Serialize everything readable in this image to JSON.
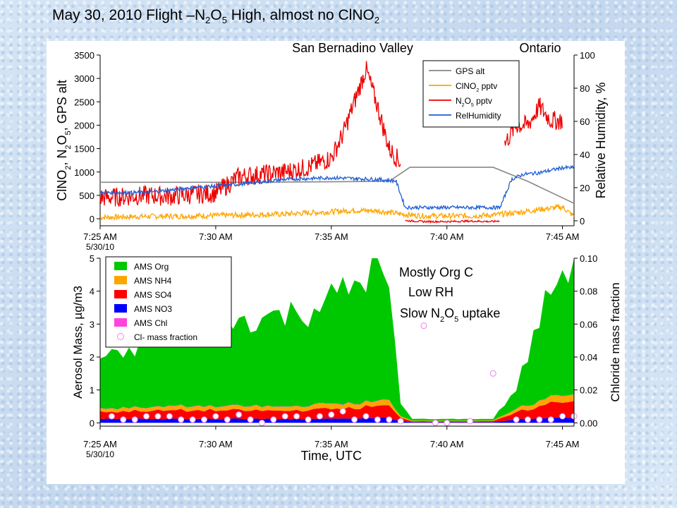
{
  "slide": {
    "title_prefix": "May 30, 2010 Flight –N",
    "title_sub1": "2",
    "title_mid1": "O",
    "title_sub2": "5",
    "title_mid2": " High, almost no ClNO",
    "title_sub3": "2"
  },
  "colors": {
    "gps_alt": "#888888",
    "clno2": "#ffa500",
    "n2o5": "#ee0000",
    "rh": "#1f5fd6",
    "ams_org": "#00c800",
    "ams_nh4": "#ffa500",
    "ams_so4": "#ff0000",
    "ams_no3": "#0000ff",
    "ams_chl": "#ff44dd",
    "cl_marker_fill": "#ffffff",
    "cl_marker_stroke": "#ee82ee"
  },
  "chart_data": [
    {
      "type": "line",
      "x_unit": "minutes after 7:25 AM",
      "xticks": [
        "7:25 AM",
        "7:30 AM",
        "7:35 AM",
        "7:40 AM",
        "7:45 AM"
      ],
      "xtick_sublabel": "5/30/10",
      "xlim": [
        0,
        20.5
      ],
      "ylabel_left": "ClNO2, N2O5, GPS alt",
      "ylabel_right": "Relative Humidity, %",
      "ylim_left": [
        -150,
        3500
      ],
      "ylim_right": [
        -3,
        100
      ],
      "yticks_left": [
        "0",
        "500",
        "1000",
        "1500",
        "2000",
        "2500",
        "3000",
        "3500"
      ],
      "yticks_right": [
        "0",
        "20",
        "40",
        "60",
        "80",
        "100"
      ],
      "annotations": [
        "San Bernadino Valley",
        "Ontario"
      ],
      "legend": [
        "GPS alt",
        "ClNO2 pptv",
        "N2O5 pptv",
        "RelHumidity"
      ],
      "series": [
        {
          "name": "GPS alt",
          "axis": "left",
          "color": "gps_alt",
          "x": [
            0,
            7,
            12.5,
            13.4,
            15,
            17,
            18.5,
            20.5
          ],
          "y": [
            780,
            780,
            800,
            1100,
            1100,
            1100,
            800,
            330
          ]
        },
        {
          "name": "ClNO2 pptv",
          "axis": "left",
          "color": "clno2",
          "style": "noisy",
          "x": [
            0,
            2,
            4,
            6,
            8,
            10,
            11,
            12,
            13,
            14,
            15,
            16,
            17,
            18,
            19,
            20,
            20.5
          ],
          "y": [
            30,
            50,
            60,
            80,
            100,
            150,
            180,
            170,
            100,
            60,
            60,
            60,
            80,
            130,
            200,
            250,
            50
          ]
        },
        {
          "name": "N2O5 pptv",
          "axis": "left",
          "color": "n2o5",
          "style": "noisy",
          "segments": [
            {
              "x": [
                0,
                1,
                2,
                3,
                4,
                5,
                6,
                7,
                8,
                9,
                10,
                10.5,
                11,
                11.5,
                12,
                12.5,
                13
              ],
              "y": [
                450,
                470,
                500,
                480,
                520,
                550,
                900,
                950,
                1000,
                1100,
                1300,
                1800,
                2500,
                3200,
                2400,
                1500,
                1200
              ]
            },
            {
              "x": [
                13.2,
                14,
                15,
                16,
                17,
                17.3
              ],
              "y": [
                -40,
                -60,
                -60,
                -50,
                -60,
                -40
              ]
            },
            {
              "x": [
                17.5,
                18,
                18.5,
                19,
                19.5,
                20
              ],
              "y": [
                1600,
                2000,
                2000,
                2400,
                2100,
                2100
              ]
            }
          ]
        },
        {
          "name": "RelHumidity",
          "axis": "right",
          "color": "rh",
          "style": "noisy",
          "x": [
            0,
            2,
            4,
            6,
            8,
            10,
            12,
            12.8,
            13.2,
            14,
            16,
            17.3,
            17.8,
            18.3,
            19,
            20,
            20.5
          ],
          "y": [
            17,
            17,
            20,
            22,
            25,
            26,
            25,
            24,
            8,
            8,
            8,
            8,
            25,
            28,
            29,
            32,
            32
          ]
        }
      ]
    },
    {
      "type": "area",
      "x_unit": "minutes after 7:25 AM",
      "xticks": [
        "7:25 AM",
        "7:30 AM",
        "7:35 AM",
        "7:40 AM",
        "7:45 AM"
      ],
      "xtick_sublabel": "5/30/10",
      "xlabel": "Time, UTC",
      "ylabel_left": "Aerosol Mass, µg/m3",
      "ylabel_right": "Chloride mass fraction",
      "ylim_left": [
        -0.1,
        5
      ],
      "ylim_right": [
        -0.002,
        0.1
      ],
      "yticks_left": [
        "0",
        "1",
        "2",
        "3",
        "4",
        "5"
      ],
      "yticks_right": [
        "0.00",
        "0.02",
        "0.04",
        "0.06",
        "0.08",
        "0.10"
      ],
      "stacking": "stacked",
      "annotations": [
        "Mostly Org C",
        "Low RH",
        "Slow N2O5  uptake"
      ],
      "legend": [
        "AMS Org",
        "AMS NH4",
        "AMS SO4",
        "AMS NO3",
        "AMS Chl",
        "Cl- mass fraction"
      ],
      "x": [
        0,
        1,
        2,
        3,
        4,
        5,
        6,
        7,
        8,
        9,
        10,
        11,
        12,
        12.5,
        13,
        13.5,
        14,
        15,
        16,
        17,
        18,
        18.5,
        19,
        19.5,
        20,
        20.5
      ],
      "series": [
        {
          "name": "AMS NO3",
          "color": "ams_no3",
          "values": [
            0.12,
            0.12,
            0.12,
            0.12,
            0.12,
            0.12,
            0.12,
            0.12,
            0.12,
            0.12,
            0.12,
            0.14,
            0.15,
            0.15,
            0.05,
            0.02,
            0.02,
            0.02,
            0.02,
            0.02,
            0.1,
            0.12,
            0.14,
            0.16,
            0.16,
            0.16
          ]
        },
        {
          "name": "AMS SO4",
          "color": "ams_so4",
          "values": [
            0.22,
            0.22,
            0.25,
            0.25,
            0.25,
            0.27,
            0.25,
            0.25,
            0.25,
            0.28,
            0.3,
            0.32,
            0.35,
            0.35,
            0.1,
            0.03,
            0.03,
            0.03,
            0.03,
            0.03,
            0.2,
            0.3,
            0.35,
            0.45,
            0.5,
            0.5
          ]
        },
        {
          "name": "AMS NH4",
          "color": "ams_nh4",
          "values": [
            0.1,
            0.1,
            0.1,
            0.12,
            0.12,
            0.12,
            0.12,
            0.12,
            0.12,
            0.12,
            0.15,
            0.15,
            0.15,
            0.15,
            0.05,
            0.02,
            0.02,
            0.02,
            0.02,
            0.02,
            0.1,
            0.12,
            0.15,
            0.18,
            0.2,
            0.2
          ]
        },
        {
          "name": "AMS Chl",
          "color": "ams_chl",
          "values": [
            0.01,
            0.01,
            0.01,
            0.01,
            0.01,
            0.01,
            0.01,
            0.01,
            0.01,
            0.01,
            0.01,
            0.01,
            0.01,
            0.01,
            0.0,
            0.0,
            0.0,
            0.0,
            0.0,
            0.0,
            0.01,
            0.01,
            0.01,
            0.01,
            0.01,
            0.01
          ]
        },
        {
          "name": "AMS Org",
          "color": "ams_org",
          "values": [
            1.5,
            1.6,
            1.9,
            2.2,
            2.1,
            2.4,
            2.6,
            2.7,
            2.8,
            2.9,
            3.2,
            3.6,
            4.1,
            3.2,
            0.4,
            0.05,
            0.05,
            0.05,
            0.05,
            0.05,
            0.6,
            1.5,
            2.5,
            3.2,
            3.8,
            4.2
          ]
        }
      ],
      "cl_fraction": {
        "name": "Cl- mass fraction",
        "axis": "right",
        "marker": "circle",
        "x": [
          0.5,
          1,
          1.5,
          2,
          2.5,
          3,
          3.5,
          4,
          4.5,
          5,
          5.5,
          6,
          6.5,
          7,
          7.5,
          8,
          8.5,
          9,
          9.5,
          10,
          10.5,
          11,
          11.5,
          12,
          12.5,
          13,
          14,
          14.5,
          15,
          16,
          17,
          18,
          18.5,
          19,
          19.5,
          20,
          20.5
        ],
        "y": [
          0.004,
          0.002,
          0.002,
          0.004,
          0.004,
          0.004,
          0.002,
          0.002,
          0.002,
          0.004,
          0.002,
          0.005,
          0.002,
          0.0,
          0.002,
          0.004,
          0.004,
          0.002,
          0.004,
          0.005,
          0.007,
          0.002,
          0.004,
          0.002,
          0.002,
          0.001,
          0.059,
          0.0,
          0.0,
          0.001,
          0.03,
          0.002,
          0.002,
          0.002,
          0.002,
          0.004,
          0.004
        ]
      }
    }
  ]
}
